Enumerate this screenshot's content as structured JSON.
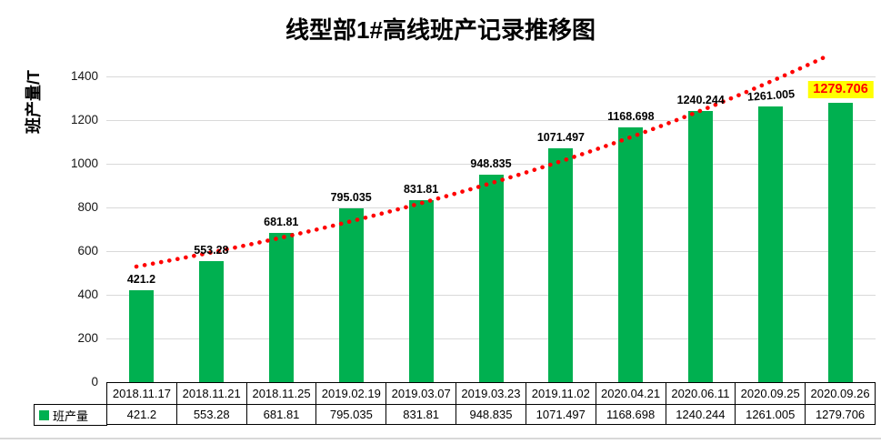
{
  "chart_data": {
    "type": "bar",
    "title": "线型部1#高线班产记录推移图",
    "ylabel": "班产量/T",
    "xlabel": "",
    "categories": [
      "2018.11.17",
      "2018.11.21",
      "2018.11.25",
      "2019.02.19",
      "2019.03.07",
      "2019.03.23",
      "2019.11.02",
      "2020.04.21",
      "2020.06.11",
      "2020.09.25",
      "2020.09.26"
    ],
    "series": [
      {
        "name": "班产量",
        "color": "#00B050",
        "values": [
          421.2,
          553.28,
          681.81,
          795.035,
          831.81,
          948.835,
          1071.497,
          1168.698,
          1240.244,
          1261.005,
          1279.706
        ]
      }
    ],
    "value_labels": [
      "421.2",
      "553.28",
      "681.81",
      "795.035",
      "831.81",
      "948.835",
      "1071.497",
      "1168.698",
      "1240.244",
      "1261.005",
      "1279.706"
    ],
    "ylim": [
      0,
      1500
    ],
    "yticks": [
      0,
      200,
      400,
      600,
      800,
      1000,
      1200,
      1400
    ],
    "grid": true,
    "data_table_shown": true,
    "trendline": {
      "style": "dotted",
      "color": "#FF0000"
    },
    "highlight_last_label": {
      "index": 10,
      "background": "#FFFF00",
      "text_color": "#FF0000"
    },
    "rotated_label_index": 9,
    "legend": {
      "label": "班产量",
      "swatch_color": "#00B050",
      "position": "data-table-left"
    }
  },
  "colors": {
    "bar": "#00B050",
    "trend": "#FF0000",
    "gridline": "#D9D9D9",
    "table_border": "#000000",
    "highlight_bg": "#FFFF00",
    "highlight_text": "#FF0000",
    "background": "#FFFFFF"
  }
}
